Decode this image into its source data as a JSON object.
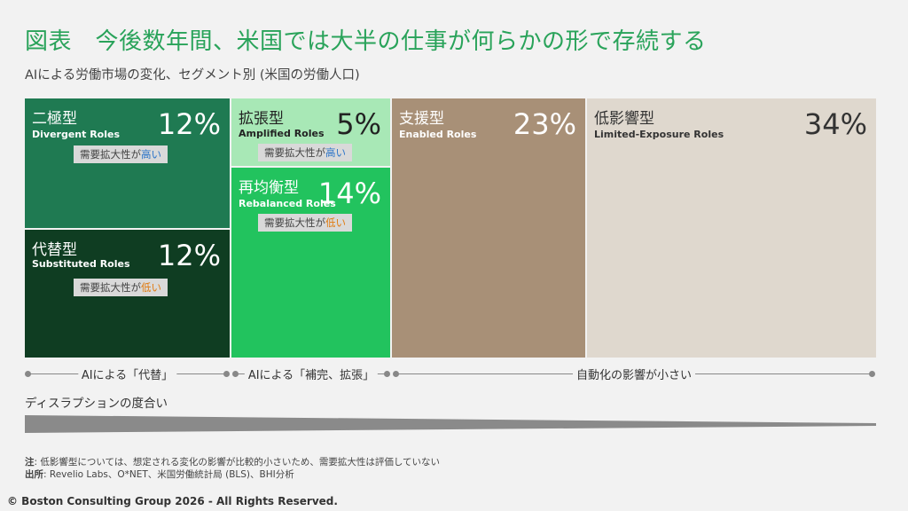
{
  "title": "図表　今後数年間、米国では大半の仕事が何らかの形で存続する",
  "subtitle": "AIによる労働市場の変化、セグメント別 (米国の労働人口)",
  "chart_data": {
    "type": "treemap",
    "segments": [
      {
        "name_jp": "二極型",
        "name_en": "Divergent Roles",
        "value": 12,
        "value_label": "12%",
        "demand_prefix": "需要拡大性が",
        "demand_level": "高い",
        "color": "#1f7a52"
      },
      {
        "name_jp": "代替型",
        "name_en": "Substituted Roles",
        "value": 12,
        "value_label": "12%",
        "demand_prefix": "需要拡大性が",
        "demand_level": "低い",
        "color": "#0f3d22"
      },
      {
        "name_jp": "拡張型",
        "name_en": "Amplified Roles",
        "value": 5,
        "value_label": "5%",
        "demand_prefix": "需要拡大性が",
        "demand_level": "高い",
        "color": "#a8e8b6"
      },
      {
        "name_jp": "再均衡型",
        "name_en": "Rebalanced Roles",
        "value": 14,
        "value_label": "14%",
        "demand_prefix": "需要拡大性が",
        "demand_level": "低い",
        "color": "#22c35e"
      },
      {
        "name_jp": "支援型",
        "name_en": "Enabled Roles",
        "value": 23,
        "value_label": "23%",
        "color": "#a89077"
      },
      {
        "name_jp": "低影響型",
        "name_en": "Limited-Exposure Roles",
        "value": 34,
        "value_label": "34%",
        "color": "#dfd8ce"
      }
    ],
    "groups": [
      {
        "label": "AIによる「代替」"
      },
      {
        "label": "AIによる「補完、拡張」"
      },
      {
        "label": "自動化の影響が小さい"
      }
    ],
    "disruption_label": "ディスラプションの度合い"
  },
  "notes": {
    "note_label": "注",
    "note_text": ": 低影響型については、想定される変化の影響が比較的小さいため、需要拡大性は評価していない",
    "source_label": "出所",
    "source_text": ": Revelio Labs、O*NET、米国労働統計局 (BLS)、BHI分析"
  },
  "copyright": "© Boston Consulting Group 2026 - All Rights Reserved."
}
